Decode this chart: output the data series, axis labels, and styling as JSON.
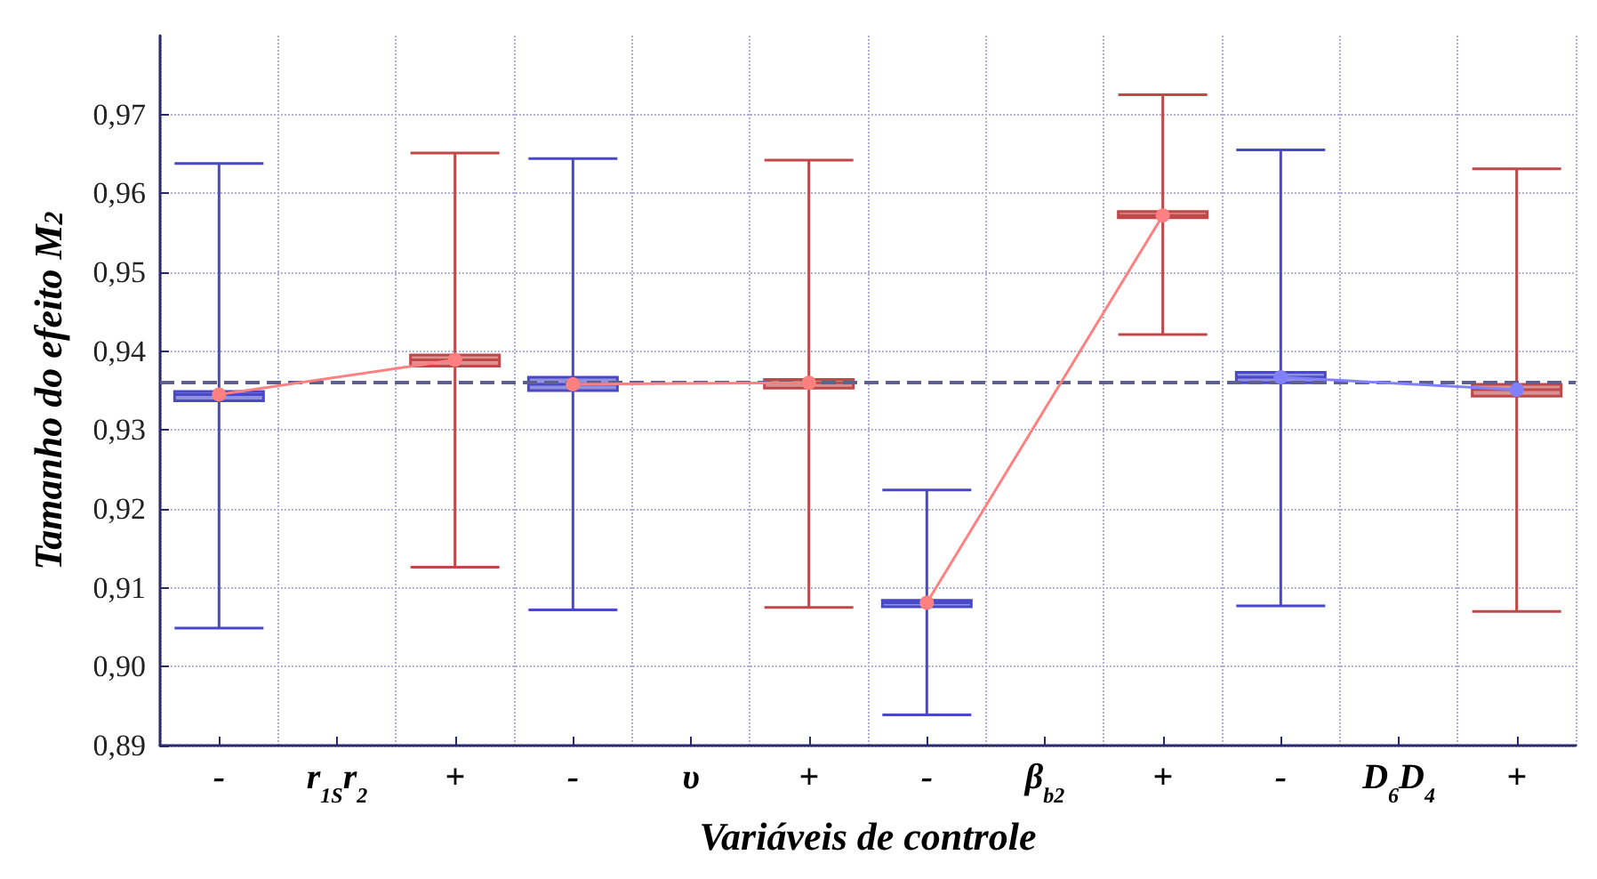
{
  "chart_data": {
    "type": "box",
    "xlabel": "Variáveis de controle",
    "ylabel": "Tamanho do efeito M$_{2}$",
    "categories": [
      "-",
      "r$_{1S}$r$_{2}$",
      "+",
      "-",
      "υ",
      "+",
      "-",
      "β$_{b2}$",
      "+",
      "-",
      "D$_{6}$D$_{4}$",
      "+"
    ],
    "series": [
      {
        "color": "#4848c8",
        "boxes": [
          {
            "low": 0.9049,
            "q1": 0.9337,
            "median": 0.9345,
            "q3": 0.9349,
            "high": 0.9638
          },
          null,
          null,
          {
            "low": 0.9072,
            "q1": 0.935,
            "median": 0.9358,
            "q3": 0.9367,
            "high": 0.9644
          },
          null,
          null,
          {
            "low": 0.8939,
            "q1": 0.9076,
            "median": 0.9081,
            "q3": 0.9084,
            "high": 0.9224
          },
          null,
          null,
          {
            "low": 0.9077,
            "q1": 0.936,
            "median": 0.9367,
            "q3": 0.9373,
            "high": 0.9655
          },
          null,
          null
        ]
      },
      {
        "color": "#c04848",
        "boxes": [
          null,
          null,
          {
            "low": 0.9126,
            "q1": 0.9381,
            "median": 0.9389,
            "q3": 0.9395,
            "high": 0.9651
          },
          null,
          null,
          {
            "low": 0.9075,
            "q1": 0.9353,
            "median": 0.936,
            "q3": 0.9364,
            "high": 0.9642
          },
          null,
          null,
          {
            "low": 0.9421,
            "q1": 0.9569,
            "median": 0.9572,
            "q3": 0.9577,
            "high": 0.9725
          },
          null,
          null,
          {
            "low": 0.907,
            "q1": 0.9343,
            "median": 0.9351,
            "q3": 0.9358,
            "high": 0.9631
          }
        ]
      },
      {
        "type": "line",
        "color": "#ff8080",
        "values": [
          0.9345,
          null,
          0.9389,
          null,
          null,
          null,
          null,
          null,
          null,
          null,
          null,
          null
        ]
      },
      {
        "type": "line",
        "color": "#ff8080",
        "values": [
          null,
          null,
          null,
          0.9358,
          null,
          0.936,
          null,
          null,
          null,
          null,
          null,
          null
        ]
      },
      {
        "type": "line",
        "color": "#ff8080",
        "values": [
          null,
          null,
          null,
          null,
          null,
          null,
          0.9081,
          null,
          0.9572,
          null,
          null,
          null
        ]
      },
      {
        "type": "line",
        "color": "#8080ff",
        "values": [
          null,
          null,
          null,
          null,
          null,
          null,
          null,
          null,
          null,
          0.9367,
          null,
          0.9351
        ]
      }
    ],
    "ylim": [
      0.89,
      0.98
    ],
    "yticks": [
      {
        "value": 0.89,
        "label": "0,89"
      },
      {
        "value": 0.9,
        "label": "0,90"
      },
      {
        "value": 0.91,
        "label": "0,91"
      },
      {
        "value": 0.92,
        "label": "0,92"
      },
      {
        "value": 0.93,
        "label": "0,93"
      },
      {
        "value": 0.94,
        "label": "0,94"
      },
      {
        "value": 0.95,
        "label": "0,95"
      },
      {
        "value": 0.96,
        "label": "0,96"
      },
      {
        "value": 0.97,
        "label": "0,97"
      }
    ],
    "ref_lines": [
      {
        "axis": "y",
        "value": 0.936,
        "color": "#606090",
        "line_style": "dashed"
      }
    ],
    "grid": true,
    "marker": "circle",
    "line_style": "solid"
  }
}
